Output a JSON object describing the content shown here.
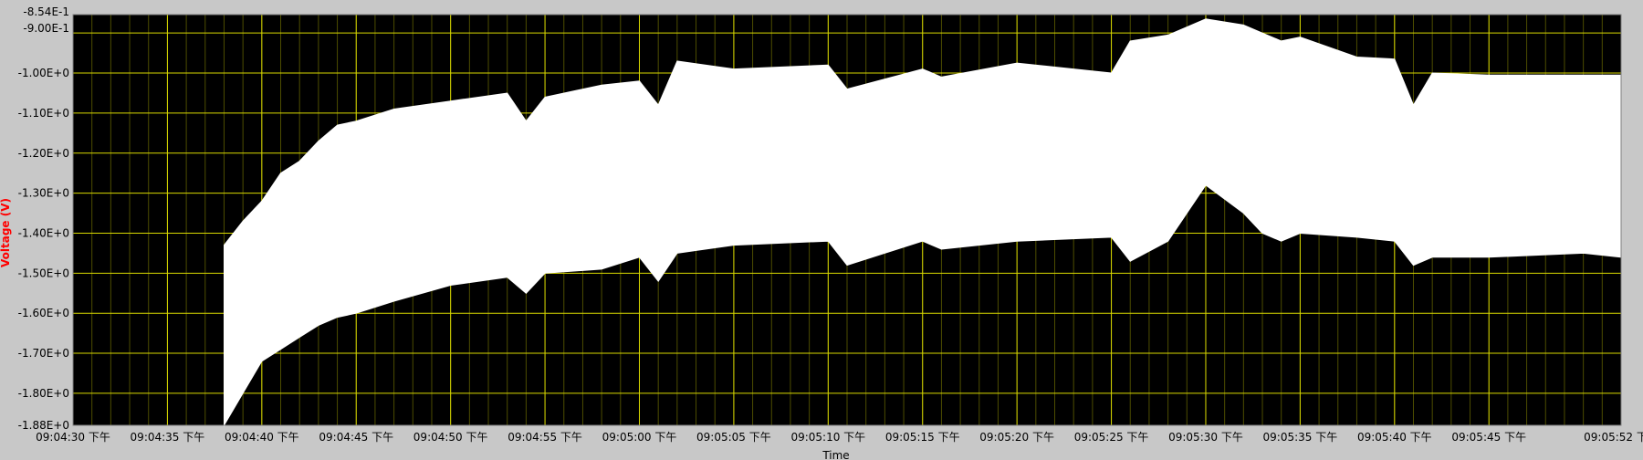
{
  "chart_data": {
    "type": "area",
    "title": "",
    "xlabel": "Time",
    "ylabel": "Voltage (V)",
    "ylim": [
      -1.88,
      -0.854
    ],
    "y_ticks": [
      {
        "value": -0.854,
        "label": "-8.54E-1"
      },
      {
        "value": -0.9,
        "label": "-9.00E-1"
      },
      {
        "value": -1.0,
        "label": "-1.00E+0"
      },
      {
        "value": -1.1,
        "label": "-1.10E+0"
      },
      {
        "value": -1.2,
        "label": "-1.20E+0"
      },
      {
        "value": -1.3,
        "label": "-1.30E+0"
      },
      {
        "value": -1.4,
        "label": "-1.40E+0"
      },
      {
        "value": -1.5,
        "label": "-1.50E+0"
      },
      {
        "value": -1.6,
        "label": "-1.60E+0"
      },
      {
        "value": -1.7,
        "label": "-1.70E+0"
      },
      {
        "value": -1.8,
        "label": "-1.80E+0"
      },
      {
        "value": -1.88,
        "label": "-1.88E+0"
      }
    ],
    "xlim": [
      "09:04:30",
      "09:05:52"
    ],
    "x_ticks": [
      {
        "value": "09:04:30",
        "label": "09:04:30 下午"
      },
      {
        "value": "09:04:35",
        "label": "09:04:35 下午"
      },
      {
        "value": "09:04:40",
        "label": "09:04:40 下午"
      },
      {
        "value": "09:04:45",
        "label": "09:04:45 下午"
      },
      {
        "value": "09:04:50",
        "label": "09:04:50 下午"
      },
      {
        "value": "09:04:55",
        "label": "09:04:55 下午"
      },
      {
        "value": "09:05:00",
        "label": "09:05:00 下午"
      },
      {
        "value": "09:05:05",
        "label": "09:05:05 下午"
      },
      {
        "value": "09:05:10",
        "label": "09:05:10 下午"
      },
      {
        "value": "09:05:15",
        "label": "09:05:15 下午"
      },
      {
        "value": "09:05:20",
        "label": "09:05:20 下午"
      },
      {
        "value": "09:05:25",
        "label": "09:05:25 下午"
      },
      {
        "value": "09:05:30",
        "label": "09:05:30 下午"
      },
      {
        "value": "09:05:35",
        "label": "09:05:35 下午"
      },
      {
        "value": "09:05:40",
        "label": "09:05:40 下午"
      },
      {
        "value": "09:05:45",
        "label": "09:05:45 下午"
      },
      {
        "value": "09:05:52",
        "label": "09:05:52 下午"
      }
    ],
    "grid": true,
    "series": [
      {
        "x": [
          "09:04:38",
          "09:04:39",
          "09:04:40",
          "09:04:41",
          "09:04:42",
          "09:04:43",
          "09:04:44",
          "09:04:45",
          "09:04:47",
          "09:04:50",
          "09:04:53",
          "09:04:54",
          "09:04:55",
          "09:04:58",
          "09:05:00",
          "09:05:01",
          "09:05:02",
          "09:05:05",
          "09:05:10",
          "09:05:11",
          "09:05:15",
          "09:05:16",
          "09:05:20",
          "09:05:25",
          "09:05:26",
          "09:05:28",
          "09:05:30",
          "09:05:32",
          "09:05:33",
          "09:05:34",
          "09:05:35",
          "09:05:38",
          "09:05:40",
          "09:05:41",
          "09:05:42",
          "09:05:45",
          "09:05:50",
          "09:05:52"
        ],
        "upper": [
          -1.43,
          -1.37,
          -1.32,
          -1.25,
          -1.22,
          -1.17,
          -1.13,
          -1.12,
          -1.09,
          -1.07,
          -1.05,
          -1.12,
          -1.06,
          -1.03,
          -1.02,
          -1.08,
          -0.97,
          -0.99,
          -0.98,
          -1.04,
          -0.99,
          -1.01,
          -0.975,
          -1.0,
          -0.92,
          -0.905,
          -0.865,
          -0.88,
          -0.9,
          -0.92,
          -0.91,
          -0.96,
          -0.965,
          -1.08,
          -1.0,
          -1.005,
          -1.005,
          -1.005
        ],
        "lower": [
          -1.88,
          -1.8,
          -1.72,
          -1.69,
          -1.66,
          -1.63,
          -1.61,
          -1.6,
          -1.57,
          -1.53,
          -1.51,
          -1.55,
          -1.5,
          -1.49,
          -1.46,
          -1.52,
          -1.45,
          -1.43,
          -1.42,
          -1.48,
          -1.42,
          -1.44,
          -1.42,
          -1.41,
          -1.47,
          -1.42,
          -1.28,
          -1.35,
          -1.4,
          -1.42,
          -1.4,
          -1.41,
          -1.42,
          -1.48,
          -1.46,
          -1.46,
          -1.45,
          -1.46
        ]
      }
    ]
  },
  "colors": {
    "frame": "#c8c8c8",
    "plot_bg": "#000000",
    "grid_major": "#d9d900",
    "grid_minor": "#4d4d00",
    "trace": "#ffffff",
    "ylabel": "#ff0000"
  }
}
